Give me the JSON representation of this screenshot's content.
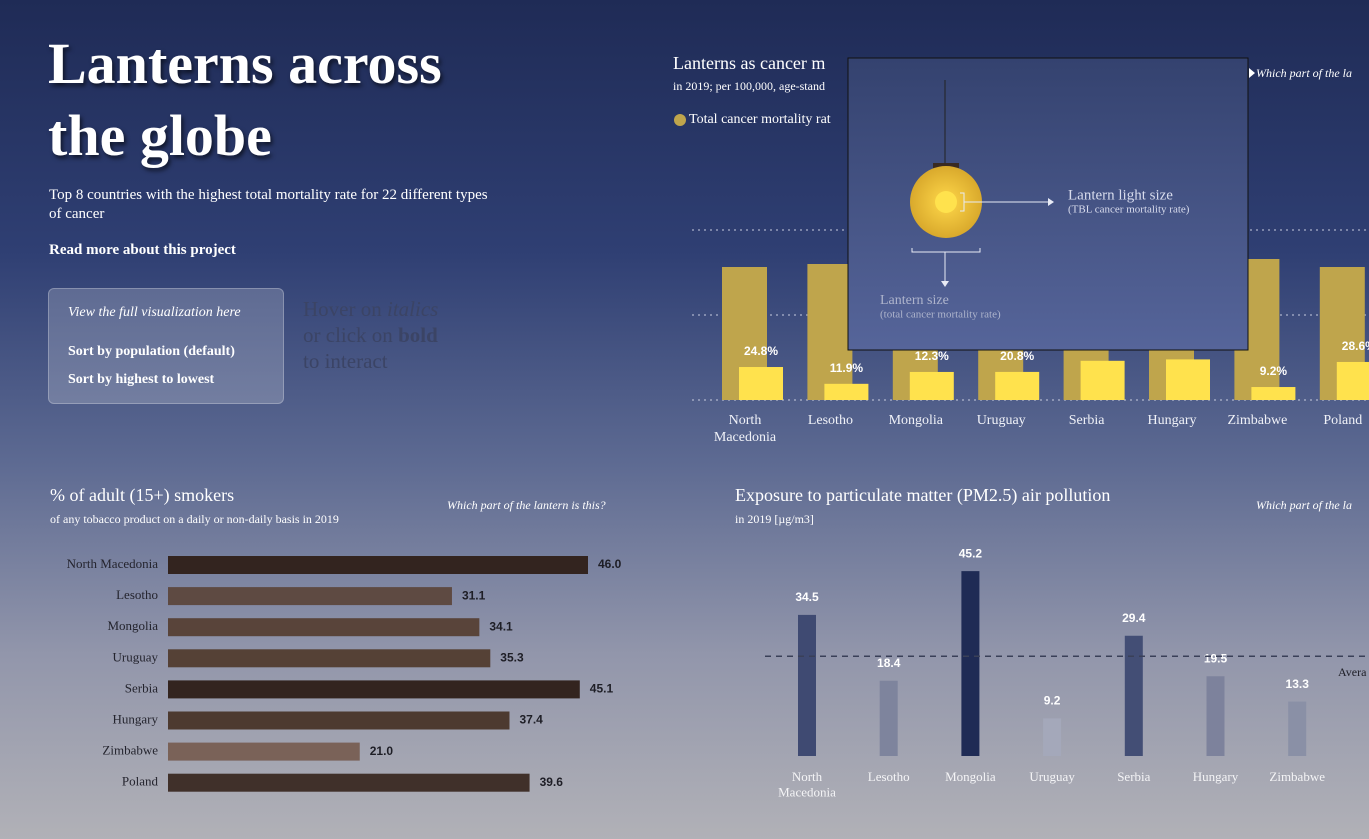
{
  "header": {
    "title": "Lanterns across the globe",
    "subtitle": "Top 8 countries with the highest total mortality rate for 22 different types of cancer",
    "link": "Read more about this project"
  },
  "panel": {
    "heading": "View the full visualization here",
    "options": [
      "Sort by population (default)",
      "Sort by highest to lowest"
    ]
  },
  "hint": [
    "Hover on",
    "italics",
    "or click on",
    "bold",
    "to interact"
  ],
  "tooltip": {
    "light_title": "Lantern light size",
    "light_note": "(TBL cancer mortality rate)",
    "size_title": "Lantern size",
    "size_note": "(total cancer mortality rate)"
  },
  "chart_data": [
    {
      "type": "lantern",
      "title": "Lanterns as cancer m",
      "subtitle": "in 2019; per 100,000, age-stand",
      "question": "Which part of the la",
      "categories": [
        "North Macedonia",
        "Lesotho",
        "Mongolia",
        "Uruguay",
        "Serbia",
        "Hungary",
        "Zimbabwe",
        "Poland"
      ],
      "series": [
        {
          "name": "Total cancer mortality rat",
          "color": "#bfa54c",
          "values": [
            133,
            136,
            228,
            135,
            140,
            140,
            141,
            133
          ]
        },
        {
          "color": "#ffe24d",
          "values": [
            24.8,
            11.9,
            12.3,
            20.8,
            28,
            29,
            9.2,
            28.6
          ],
          "value_labels": [
            "24.8%",
            "11.9%",
            "12.3%",
            "20.8%",
            null,
            null,
            "9.2%",
            "28.6%"
          ]
        }
      ],
      "ylim": [
        0,
        240
      ]
    },
    {
      "type": "hbar",
      "title": "% of adult (15+) smokers",
      "subtitle": "of any tobacco product on a daily or non-daily basis in 2019",
      "question": "Which part of the lantern is this?",
      "categories": [
        "North Macedonia",
        "Lesotho",
        "Mongolia",
        "Uruguay",
        "Serbia",
        "Hungary",
        "Zimbabwe",
        "Poland"
      ],
      "values": [
        46,
        31.1,
        34.1,
        35.3,
        45.1,
        37.4,
        21,
        39.6
      ],
      "value_labels": [
        "46.0",
        "31.1",
        "34.1",
        "35.3",
        "45.1",
        "37.4",
        "21.0",
        "39.6"
      ],
      "colors": [
        "#33241f",
        "#5e4a42",
        "#59443a",
        "#554136",
        "#33241f",
        "#4d3a30",
        "#7a6258",
        "#40302a"
      ],
      "xlim": [
        0,
        46
      ]
    },
    {
      "type": "bar",
      "title": "Exposure to particulate matter (PM2.5) air pollution",
      "subtitle": "in 2019 [µg/m3]",
      "question": "Which part of the la",
      "categories": [
        "North Macedonia",
        "Lesotho",
        "Mongolia",
        "Uruguay",
        "Serbia",
        "Hungary",
        "Zimbabwe"
      ],
      "values": [
        34.5,
        18.4,
        45.2,
        9.2,
        29.4,
        19.5,
        13.3
      ],
      "colors": [
        "#3f4a72",
        "#7e849d",
        "#1f2b55",
        "#a4a8ba",
        "#434e75",
        "#7d829c",
        "#8a90a6"
      ],
      "ylim": [
        0,
        50
      ],
      "average": 24.4,
      "average_label": "Avera"
    }
  ]
}
